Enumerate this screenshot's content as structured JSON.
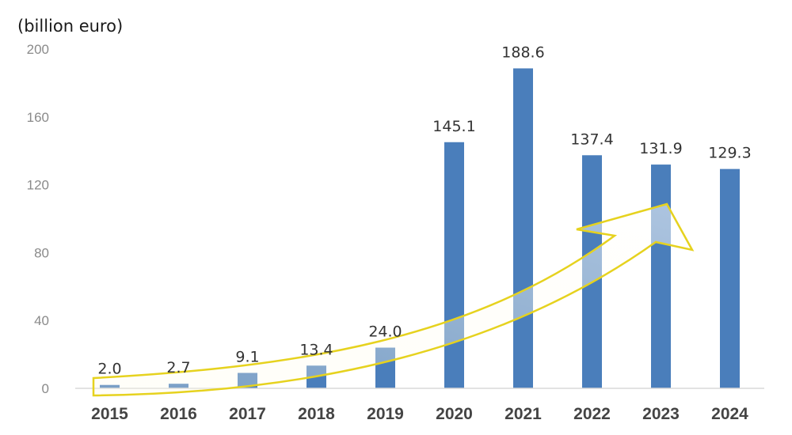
{
  "chart_data": {
    "type": "bar",
    "unit_label": "(billion euro)",
    "categories": [
      "2015",
      "2016",
      "2017",
      "2018",
      "2019",
      "2020",
      "2021",
      "2022",
      "2023",
      "2024"
    ],
    "values": [
      2.0,
      2.7,
      9.1,
      13.4,
      24.0,
      145.1,
      188.6,
      137.4,
      131.9,
      129.3
    ],
    "data_labels": [
      "2.0",
      "2.7",
      "9.1",
      "13.4",
      "24.0",
      "145.1",
      "188.6",
      "137.4",
      "131.9",
      "129.3"
    ],
    "yticks": [
      "0",
      "40",
      "80",
      "120",
      "160",
      "200"
    ],
    "ylim": [
      0,
      200
    ],
    "title": "",
    "xlabel": "",
    "ylabel": "",
    "grid": false,
    "legend": "none",
    "annotation": "upward trend arrow",
    "colors": {
      "bar": "#4a7ebb",
      "axis": "#d9d9d9",
      "arrow": "#e6d21e"
    }
  }
}
